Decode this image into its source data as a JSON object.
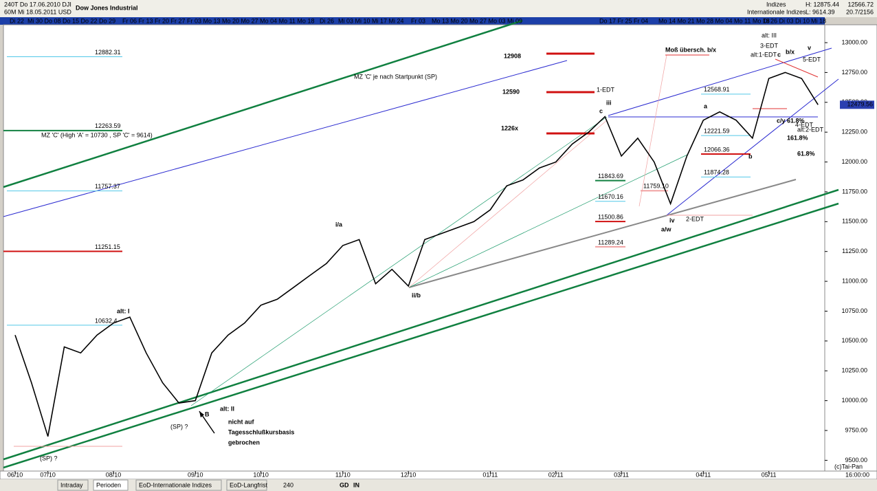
{
  "header": {
    "line1": "240T Do 17.06.2010 DJI",
    "line2": "60M Mi 18.05.2011 USD",
    "title": "Dow Jones Industrial",
    "group": "Indizes",
    "group2": "Internationale Indizes",
    "high": "H: 12875.44",
    "low": "L: 9614.39",
    "value": "12566.72",
    "info": "20.7/2156"
  },
  "date_strip": [
    "Di 22",
    "Mi 30 Do 08 Do 15 Do 22 Do 29",
    "Fr 06 Fr 13 Fr 20 Fr 27 Fr 03 Mo 13 Mo 20 Mo 27 Mo 04 Mo 11 Mo 18",
    "Di 26",
    "Mi 03 Mi 10 Mi 17 Mi 24",
    "Fr 03",
    "Mo 13 Mo 20 Mo 27 Mo 03 Mi 09",
    "Do 17 Fr 25 Fr 04",
    "Mo 14 Mo 21 Mo 28 Mo 04 Mo 11 Mo 18",
    "Di 26 Di 03 Di 10",
    "Mi 18"
  ],
  "chart_data": {
    "type": "line",
    "color": "#000000",
    "categories": [
      "06/10",
      null,
      "07/10",
      null,
      null,
      null,
      "08/10",
      null,
      null,
      null,
      null,
      "09/10",
      null,
      null,
      null,
      "10/10",
      null,
      null,
      null,
      null,
      "11/10",
      null,
      null,
      null,
      "12/10",
      null,
      null,
      null,
      null,
      "01/11",
      null,
      null,
      null,
      "02/11",
      null,
      null,
      null,
      "03/11",
      null,
      null,
      null,
      null,
      "04/11",
      null,
      null,
      null,
      "05/11",
      null,
      null,
      null
    ],
    "values": [
      10550,
      10150,
      9700,
      10450,
      10400,
      10550,
      10650,
      10700,
      10400,
      10150,
      9980,
      10000,
      10400,
      10550,
      10650,
      10800,
      10850,
      10950,
      11050,
      11150,
      11300,
      11350,
      10980,
      11100,
      10960,
      11350,
      11400,
      11450,
      11500,
      11600,
      11800,
      11850,
      11950,
      12000,
      12150,
      12250,
      12380,
      12050,
      12200,
      12000,
      11650,
      12050,
      12350,
      12420,
      12350,
      12200,
      12700,
      12750,
      12700,
      12480
    ],
    "ylim": [
      9410,
      13150
    ],
    "yticks": [
      {
        "value": 9500,
        "label": "9500.00"
      },
      {
        "value": 9750,
        "label": "9750.00"
      },
      {
        "value": 10000,
        "label": "10000.00"
      },
      {
        "value": 10250,
        "label": "10250.00"
      },
      {
        "value": 10500,
        "label": "10500.00"
      },
      {
        "value": 10750,
        "label": "10750.00"
      },
      {
        "value": 11000,
        "label": "11000.00"
      },
      {
        "value": 11250,
        "label": "11250.00"
      },
      {
        "value": 11500,
        "label": "11500.00"
      },
      {
        "value": 11750,
        "label": "11750.00"
      },
      {
        "value": 12000,
        "label": "12000.00"
      },
      {
        "value": 12250,
        "label": "12250.00"
      },
      {
        "value": 12500,
        "label": "12500.00"
      },
      {
        "value": 12750,
        "label": "12750.00"
      },
      {
        "value": 13000,
        "label": "13000.00"
      }
    ],
    "last_price": 12479.56,
    "levels": [
      12882.31,
      12263.59,
      11757.37,
      11251.15,
      10632.4,
      12568.91,
      12221.59,
      12066.36,
      11874.28,
      11843.69,
      11670.16,
      11500.86,
      11289.24,
      {
        "value": 11759.1,
        "label": "11759.10"
      }
    ],
    "annotations": [
      "MZ 'C' je nach Startpunkt (SP)",
      "MZ 'C' (High 'A' = 10730 , SP 'C' = 9614)",
      "12908",
      "12590",
      "1226x",
      "1-EDT",
      "iii",
      "c",
      "alt: III",
      "3-EDT",
      "alt:1-EDT",
      "c",
      "b/x",
      "v",
      "5-EDT",
      "Moß übersch. b/x",
      "a",
      "c/y 61.8%",
      "4-EDT",
      "alt:2-EDT",
      "161.8%",
      "61.8%",
      "b",
      "iv",
      "2-EDT",
      "a/w",
      "i/a",
      "ii/b",
      "alt: I",
      "alt: II",
      "B",
      "nicht auf",
      "Tagesschlußkursbasis",
      "gebrochen",
      "(SP) ?",
      "(SP) ?"
    ]
  },
  "footer": {
    "tabs": [
      "Intraday",
      "Perioden",
      "EoD-Internationale Indizes",
      "EoD-Langfrist"
    ],
    "period": "240",
    "gd": "GD",
    "in": "IN",
    "copyright": "(c)Tai-Pan",
    "time": "16:00:00"
  }
}
